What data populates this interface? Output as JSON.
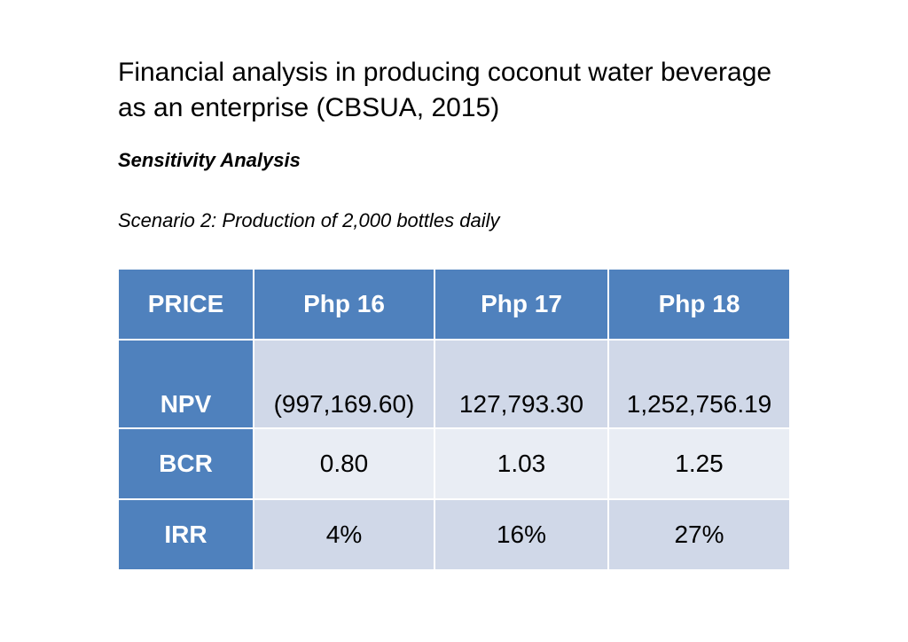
{
  "title": {
    "line1": "Financial analysis in producing coconut water beverage",
    "line2": "as an enterprise (CBSUA, 2015)"
  },
  "subtitle": "Sensitivity Analysis",
  "scenario": "Scenario 2:  Production of 2,000 bottles daily",
  "table": {
    "headers": [
      "PRICE",
      "Php 16",
      "Php 17",
      "Php 18"
    ],
    "rows": [
      {
        "label": "NPV",
        "values": [
          "(997,169.60)",
          "127,793.30",
          "1,252,756.19"
        ]
      },
      {
        "label": "BCR",
        "values": [
          "0.80",
          "1.03",
          "1.25"
        ]
      },
      {
        "label": "IRR",
        "values": [
          "4%",
          "16%",
          "27%"
        ]
      }
    ]
  },
  "colors": {
    "header_blue": "#4f81bd",
    "row_dark": "#d0d8e8",
    "row_light": "#e9edf4"
  }
}
